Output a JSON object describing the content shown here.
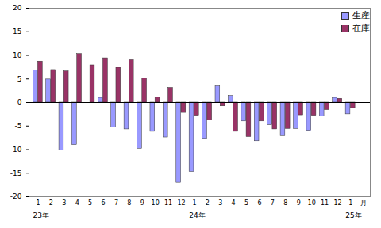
{
  "chart_data": {
    "type": "bar",
    "categories": [
      "1",
      "2",
      "3",
      "4",
      "5",
      "6",
      "7",
      "8",
      "9",
      "10",
      "11",
      "12",
      "1",
      "2",
      "3",
      "4",
      "5",
      "6",
      "7",
      "8",
      "9",
      "10",
      "11",
      "12",
      "1"
    ],
    "x_label": "月",
    "series": [
      {
        "name": "生産",
        "color": "#9999ff",
        "values": [
          6.8,
          4.9,
          -10.2,
          -9.0,
          0,
          1.0,
          -5.3,
          -5.7,
          -9.8,
          -6.2,
          -7.4,
          -17.0,
          -14.7,
          -7.7,
          3.6,
          1.4,
          -4.0,
          -8.2,
          -4.8,
          -7.1,
          -5.6,
          -6.0,
          -2.9,
          1.0,
          -2.5
        ]
      },
      {
        "name": "在庫",
        "color": "#993366",
        "values": [
          8.7,
          6.9,
          6.6,
          10.3,
          7.9,
          9.4,
          7.4,
          9.0,
          5.1,
          1.1,
          3.1,
          -2.2,
          -2.8,
          -3.8,
          -0.8,
          -6.2,
          -7.3,
          -4.0,
          -5.7,
          -5.6,
          -2.7,
          -2.8,
          -1.6,
          0.8,
          -1.2
        ]
      }
    ],
    "ylim": [
      -20,
      20
    ],
    "yticks": [
      -20,
      -15,
      -10,
      -5,
      0,
      5,
      10,
      15,
      20
    ],
    "grid": false,
    "legend": "top-right",
    "annotations": [
      {
        "text": "23年",
        "x": 0
      },
      {
        "text": "24年",
        "x": 12
      },
      {
        "text": "25年",
        "x": 24
      }
    ]
  }
}
